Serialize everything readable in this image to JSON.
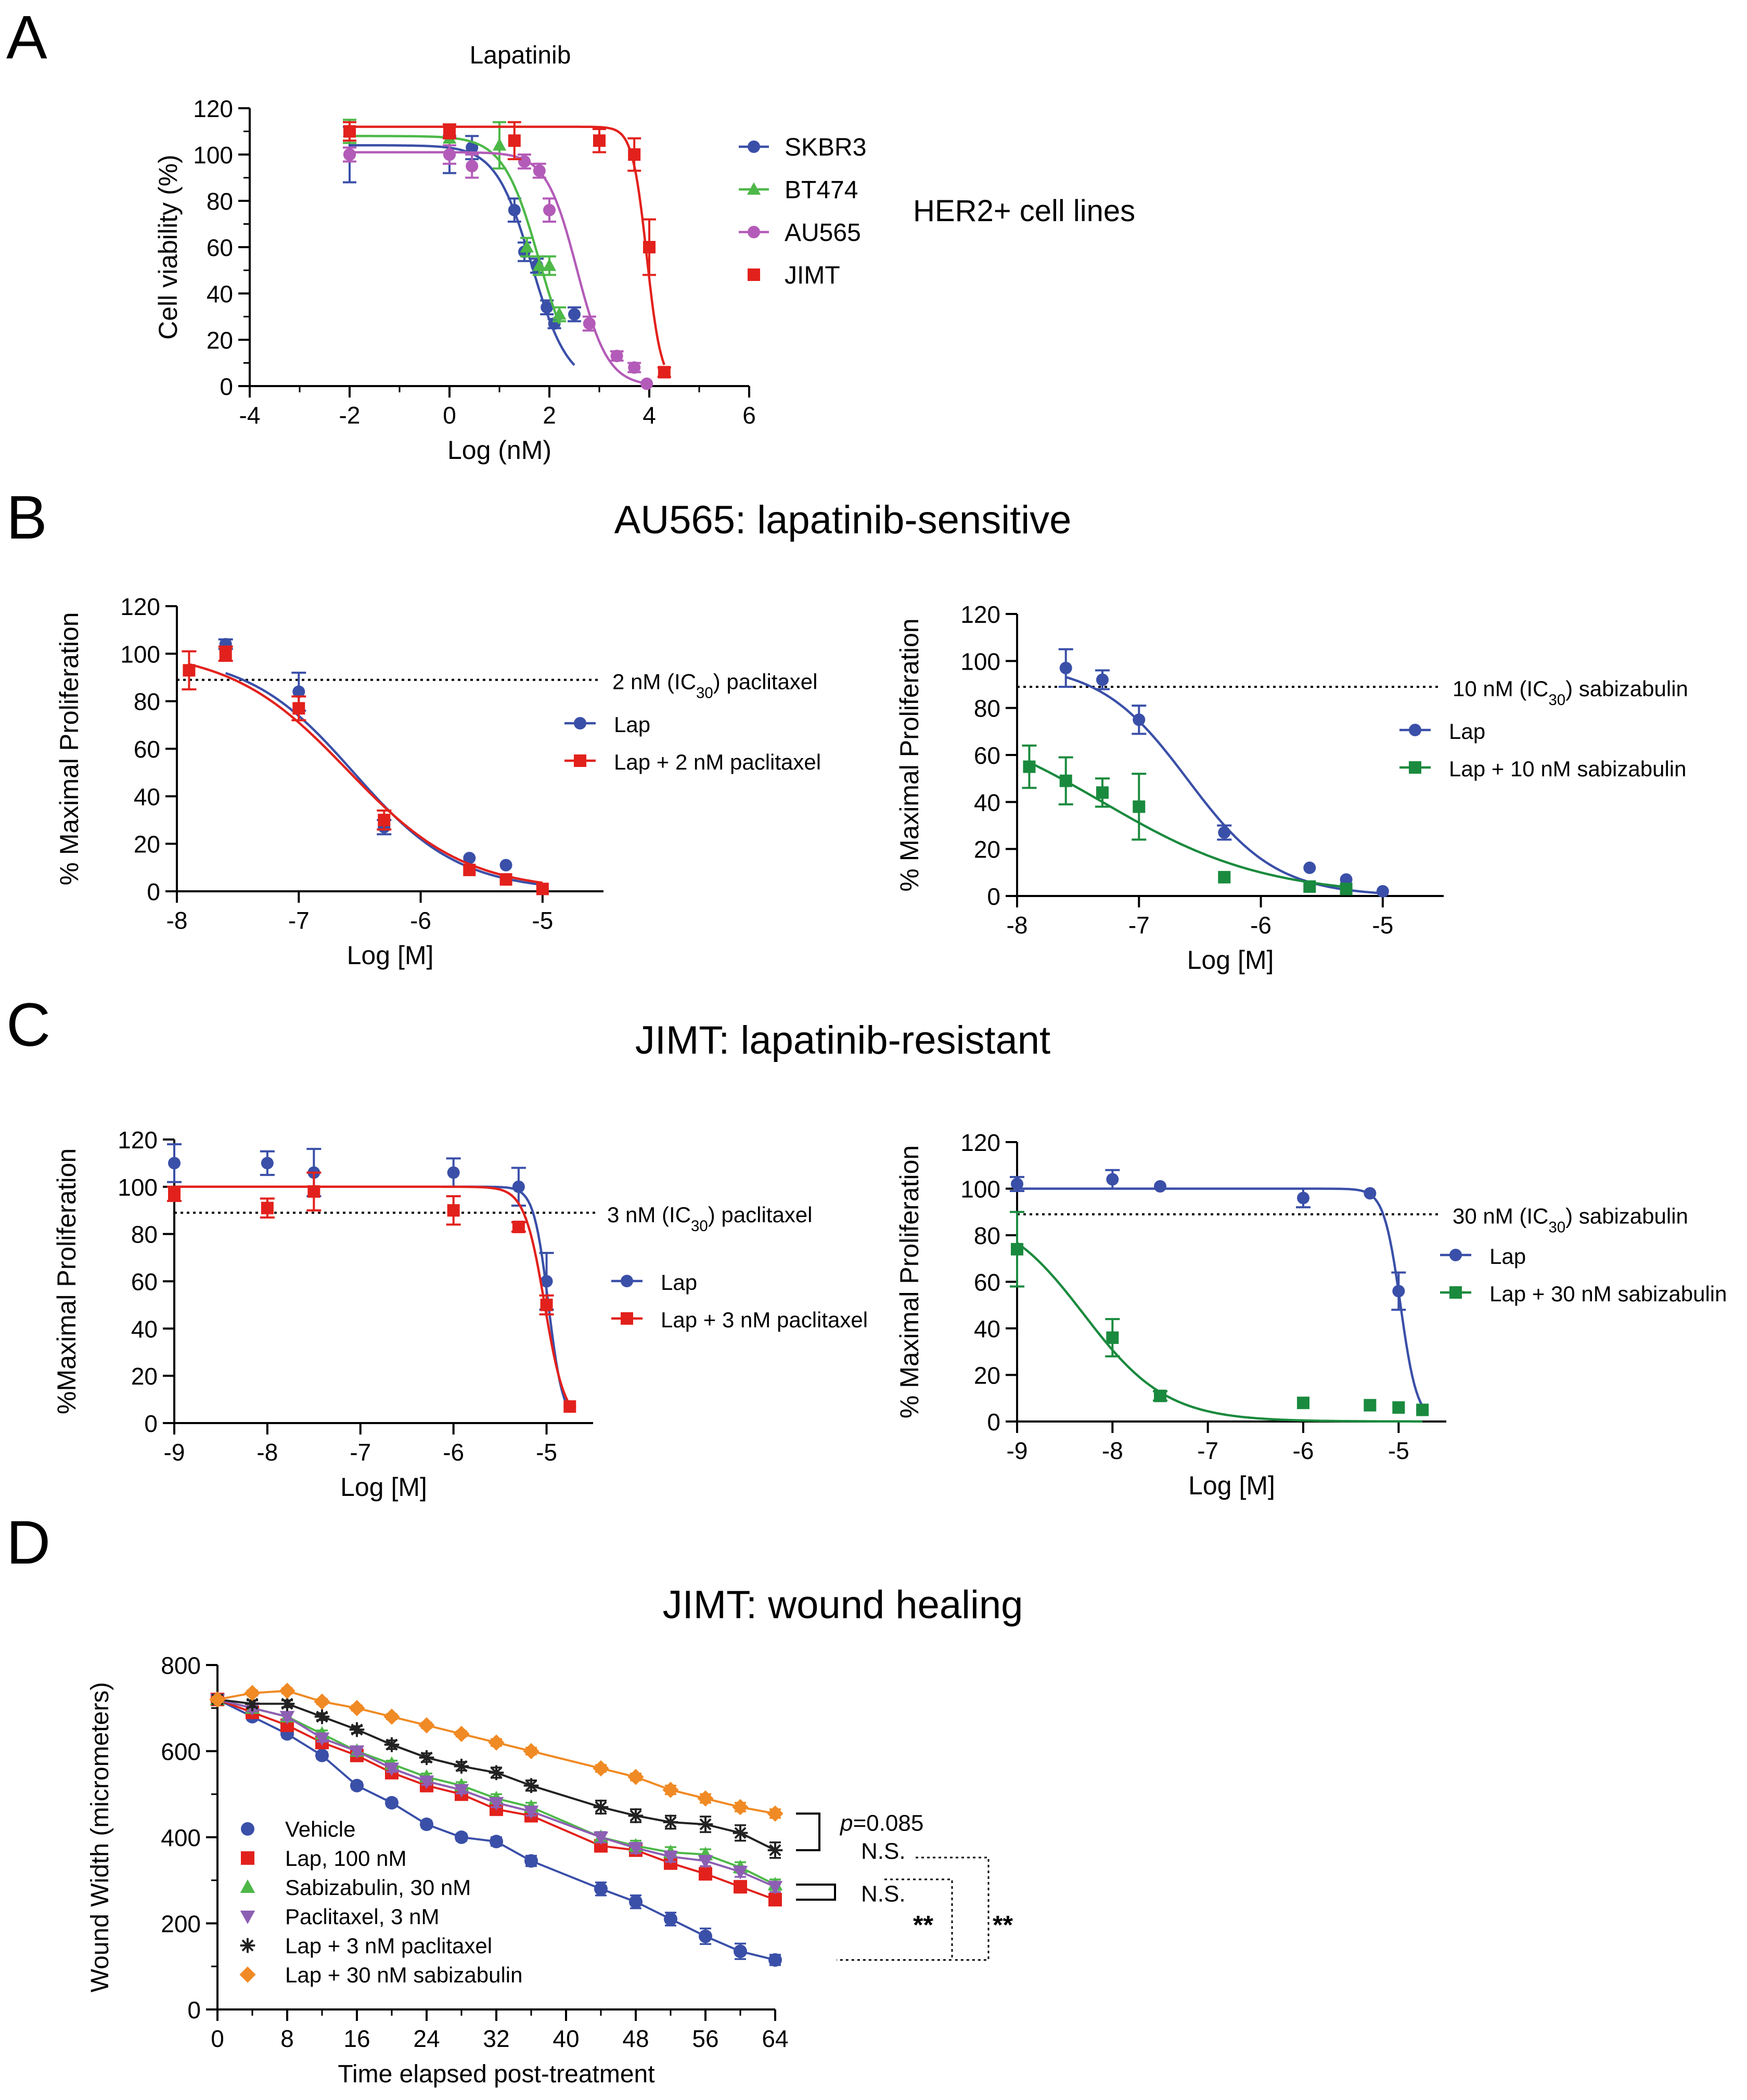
{
  "chart_data": [
    {
      "panel": "A",
      "type": "scatter",
      "title": "Lapatinib",
      "xlabel": "Log (nM)",
      "ylabel": "Cell viability (%)",
      "xlim": [
        -4,
        6
      ],
      "ylim": [
        0,
        120
      ],
      "xticks": [
        "-4",
        "-2",
        "0",
        "2",
        "4",
        "6"
      ],
      "yticks": [
        "0",
        "20",
        "40",
        "60",
        "80",
        "100",
        "120"
      ],
      "annotation": "HER2+ cell lines",
      "series": [
        {
          "name": "SKBR3",
          "color": "#3a4fa8",
          "marker": "circle",
          "x": [
            -2,
            0,
            0.45,
            1.3,
            1.5,
            1.75,
            1.95,
            2.1,
            2.5
          ],
          "y": [
            100,
            100,
            103,
            76,
            58,
            52,
            34,
            27,
            31
          ],
          "err": [
            12,
            8,
            5,
            5,
            4,
            3,
            3,
            2,
            3
          ],
          "fit": {
            "top": 104,
            "bottom": 0,
            "logic50": 1.65,
            "hill": 1.2
          }
        },
        {
          "name": "BT474",
          "color": "#4db848",
          "marker": "triangle",
          "x": [
            -2,
            0,
            1.0,
            1.55,
            1.8,
            2.0,
            2.2
          ],
          "y": [
            110,
            107,
            104,
            60,
            52,
            52,
            31
          ],
          "err": [
            5,
            6,
            10,
            4,
            4,
            4,
            3
          ],
          "fit": {
            "top": 108,
            "bottom": 0,
            "logic50": 1.8,
            "hill": 1.2
          }
        },
        {
          "name": "AU565",
          "color": "#b35bb8",
          "marker": "circle",
          "x": [
            -2,
            0,
            0.45,
            1.5,
            1.8,
            2.0,
            2.8,
            3.35,
            3.7,
            3.95
          ],
          "y": [
            100,
            100,
            95,
            97,
            93,
            76,
            27,
            13,
            8,
            1
          ],
          "err": [
            3,
            4,
            5,
            3,
            3,
            5,
            3,
            2,
            2,
            1
          ],
          "fit": {
            "top": 101,
            "bottom": 0,
            "logic50": 2.55,
            "hill": 1.4
          }
        },
        {
          "name": "JIMT",
          "color": "#e2211c",
          "marker": "square",
          "x": [
            -2,
            0,
            1.3,
            3.0,
            3.7,
            4.0,
            4.3
          ],
          "y": [
            110,
            110,
            106,
            106,
            100,
            60,
            6
          ],
          "err": [
            4,
            3,
            8,
            5,
            7,
            12,
            2
          ],
          "fit": {
            "top": 112,
            "bottom": 0,
            "logic50": 3.95,
            "hill": 3.0
          }
        }
      ]
    },
    {
      "panel": "B-left",
      "type": "scatter",
      "section_title": "AU565: lapatinib-sensitive",
      "xlabel": "Log [M]",
      "ylabel": "% Maximal Proliferation",
      "xlim": [
        -8,
        -4.5
      ],
      "ylim": [
        0,
        120
      ],
      "xticks": [
        "-8",
        "-7",
        "-6",
        "-5"
      ],
      "xtick_values": [
        -8,
        -7,
        -6,
        -5
      ],
      "yticks": [
        "0",
        "20",
        "40",
        "60",
        "80",
        "100",
        "120"
      ],
      "reference_line": {
        "y": 89,
        "label_pre": "2 nM (IC",
        "label_sub": "30",
        "label_post": ") paclitaxel"
      },
      "series": [
        {
          "name": "Lap",
          "color": "#3a4fa8",
          "marker": "circle",
          "x": [
            -7.6,
            -7.0,
            -6.3,
            -5.6,
            -5.3,
            -5.0
          ],
          "y": [
            104,
            84,
            27,
            14,
            11,
            1
          ],
          "err": [
            2,
            8,
            3,
            1,
            1,
            1
          ],
          "fit": {
            "top": 100,
            "bottom": 0,
            "logic50": -6.55,
            "hill": 1.0
          }
        },
        {
          "name": "Lap + 2 nM paclitaxel",
          "color": "#e2211c",
          "marker": "square",
          "x": [
            -7.9,
            -7.6,
            -7.0,
            -6.3,
            -5.6,
            -5.3,
            -5.0
          ],
          "y": [
            93,
            100,
            77,
            30,
            9,
            5,
            1
          ],
          "err": [
            8,
            3,
            5,
            4,
            1,
            1,
            1
          ],
          "fit": {
            "top": 102,
            "bottom": 0,
            "logic50": -6.6,
            "hill": 0.9
          }
        }
      ]
    },
    {
      "panel": "B-right",
      "type": "scatter",
      "xlabel": "Log [M]",
      "ylabel": "% Maximal Proliferation",
      "xlim": [
        -8,
        -4.5
      ],
      "ylim": [
        0,
        120
      ],
      "xticks": [
        "-8",
        "-7",
        "-6",
        "-5"
      ],
      "xtick_values": [
        -8,
        -7,
        -6,
        -5
      ],
      "yticks": [
        "0",
        "20",
        "40",
        "60",
        "80",
        "100",
        "120"
      ],
      "reference_line": {
        "y": 89,
        "label_pre": "10 nM (IC",
        "label_sub": "30",
        "label_post": ") sabizabulin"
      },
      "series": [
        {
          "name": "Lap",
          "color": "#3a4fa8",
          "marker": "circle",
          "x": [
            -7.6,
            -7.3,
            -7.0,
            -6.3,
            -5.6,
            -5.3,
            -5.0
          ],
          "y": [
            97,
            92,
            75,
            27,
            12,
            7,
            2
          ],
          "err": [
            8,
            4,
            6,
            3,
            1,
            1,
            1
          ],
          "fit": {
            "top": 99,
            "bottom": 0,
            "logic50": -6.6,
            "hill": 1.2
          }
        },
        {
          "name": "Lap + 10 nM sabizabulin",
          "color": "#1a8a3e",
          "marker": "square",
          "x": [
            -7.9,
            -7.6,
            -7.3,
            -7.0,
            -6.3,
            -5.6,
            -5.3
          ],
          "y": [
            55,
            49,
            44,
            38,
            8,
            4,
            3
          ],
          "err": [
            9,
            10,
            6,
            14,
            1,
            1,
            1
          ],
          "fit": {
            "top": 80,
            "bottom": 0,
            "logic50": -7.3,
            "hill": 0.65
          }
        }
      ]
    },
    {
      "panel": "C-left",
      "type": "scatter",
      "section_title": "JIMT: lapatinib-resistant",
      "xlabel": "Log [M]",
      "ylabel": "%Maximal Proliferation",
      "xlim": [
        -9,
        -4.5
      ],
      "ylim": [
        0,
        120
      ],
      "xticks": [
        "-9",
        "-8",
        "-7",
        "-6",
        "-5"
      ],
      "xtick_values": [
        -9,
        -8,
        -7,
        -6,
        -5
      ],
      "yticks": [
        "0",
        "20",
        "40",
        "60",
        "80",
        "100",
        "120"
      ],
      "reference_line": {
        "y": 89,
        "label_pre": "3 nM (IC",
        "label_sub": "30",
        "label_post": ") paclitaxel"
      },
      "series": [
        {
          "name": "Lap",
          "color": "#3a4fa8",
          "marker": "circle",
          "x": [
            -9.0,
            -8.0,
            -7.5,
            -6.0,
            -5.3,
            -5.0,
            -4.75
          ],
          "y": [
            110,
            110,
            106,
            106,
            100,
            60,
            7
          ],
          "err": [
            8,
            5,
            10,
            6,
            8,
            12,
            1
          ],
          "fit": {
            "top": 100,
            "bottom": 0,
            "logic50": -4.98,
            "hill": 5.5
          }
        },
        {
          "name": "Lap + 3 nM paclitaxel",
          "color": "#e2211c",
          "marker": "square",
          "x": [
            -9.0,
            -8.0,
            -7.5,
            -6.0,
            -5.3,
            -5.0,
            -4.75
          ],
          "y": [
            97,
            91,
            98,
            90,
            83,
            50,
            7
          ],
          "err": [
            3,
            4,
            8,
            6,
            2,
            4,
            1
          ],
          "fit": {
            "top": 100,
            "bottom": 0,
            "logic50": -5.02,
            "hill": 4.0
          }
        }
      ]
    },
    {
      "panel": "C-right",
      "type": "scatter",
      "xlabel": "Log [M]",
      "ylabel": "% Maximal Proliferation",
      "xlim": [
        -9,
        -4.5
      ],
      "ylim": [
        0,
        120
      ],
      "xticks": [
        "-9",
        "-8",
        "-7",
        "-6",
        "-5"
      ],
      "xtick_values": [
        -9,
        -8,
        -7,
        -6,
        -5
      ],
      "yticks": [
        "0",
        "20",
        "40",
        "60",
        "80",
        "100",
        "120"
      ],
      "reference_line": {
        "y": 89,
        "label_pre": "30 nM (IC",
        "label_sub": "30",
        "label_post": ") sabizabulin"
      },
      "series": [
        {
          "name": "Lap",
          "color": "#3a4fa8",
          "marker": "circle",
          "x": [
            -9.0,
            -8.0,
            -7.5,
            -6.0,
            -5.3,
            -5.0,
            -4.75
          ],
          "y": [
            102,
            104,
            101,
            96,
            98,
            56,
            5
          ],
          "err": [
            3,
            4,
            1,
            4,
            1,
            8,
            1
          ],
          "fit": {
            "top": 100,
            "bottom": 0,
            "logic50": -4.98,
            "hill": 5.0
          }
        },
        {
          "name": "Lap + 30 nM sabizabulin",
          "color": "#1a8a3e",
          "marker": "square",
          "x": [
            -9.0,
            -8.0,
            -7.5,
            -6.0,
            -5.3,
            -5.0,
            -4.75
          ],
          "y": [
            74,
            36,
            11,
            8,
            7,
            6,
            5
          ],
          "err": [
            16,
            8,
            2,
            1,
            1,
            1,
            1
          ],
          "fit": {
            "top": 92,
            "bottom": 0,
            "logic50": -8.3,
            "hill": 1.0
          }
        }
      ]
    },
    {
      "panel": "D",
      "type": "line",
      "section_title": "JIMT: wound healing",
      "xlabel": "Time elapsed post-treatment",
      "ylabel": "Wound Width (micrometers)",
      "xlim": [
        0,
        64
      ],
      "ylim": [
        0,
        800
      ],
      "xticks": [
        "0",
        "8",
        "16",
        "24",
        "32",
        "40",
        "48",
        "56",
        "64"
      ],
      "yticks": [
        "0",
        "200",
        "400",
        "600",
        "800"
      ],
      "x": [
        0,
        4,
        8,
        12,
        16,
        20,
        24,
        28,
        32,
        36,
        44,
        48,
        52,
        56,
        60,
        64
      ],
      "series": [
        {
          "name": "Vehicle",
          "color": "#3a4fa8",
          "marker": "circle",
          "values": [
            720,
            680,
            640,
            590,
            520,
            480,
            430,
            400,
            390,
            345,
            280,
            250,
            210,
            170,
            135,
            115
          ],
          "err": [
            8,
            8,
            8,
            8,
            8,
            8,
            8,
            8,
            10,
            12,
            15,
            15,
            15,
            18,
            18,
            12
          ]
        },
        {
          "name": "Lap, 100 nM",
          "color": "#e2211c",
          "marker": "square",
          "values": [
            720,
            690,
            660,
            620,
            590,
            550,
            520,
            500,
            465,
            450,
            380,
            370,
            340,
            315,
            285,
            255
          ],
          "err": [
            8,
            8,
            8,
            8,
            8,
            8,
            8,
            8,
            10,
            10,
            12,
            12,
            12,
            12,
            12,
            12
          ]
        },
        {
          "name": "Sabizabulin, 30 nM",
          "color": "#4db848",
          "marker": "triangle",
          "values": [
            720,
            700,
            680,
            640,
            600,
            570,
            540,
            520,
            490,
            470,
            400,
            380,
            365,
            360,
            330,
            290
          ],
          "err": [
            8,
            8,
            8,
            8,
            8,
            8,
            8,
            8,
            10,
            10,
            12,
            12,
            12,
            12,
            12,
            12
          ]
        },
        {
          "name": "Paclitaxel, 3 nM",
          "color": "#8d5fb3",
          "marker": "triangle-down",
          "values": [
            720,
            700,
            680,
            630,
            600,
            560,
            530,
            510,
            480,
            460,
            400,
            375,
            355,
            345,
            320,
            285
          ],
          "err": [
            8,
            8,
            8,
            8,
            8,
            8,
            8,
            8,
            10,
            10,
            12,
            12,
            12,
            12,
            12,
            12
          ]
        },
        {
          "name": "Lap + 3 nM paclitaxel",
          "color": "#222222",
          "marker": "asterisk",
          "values": [
            720,
            710,
            710,
            680,
            650,
            615,
            585,
            565,
            550,
            520,
            470,
            450,
            435,
            430,
            410,
            370
          ],
          "err": [
            8,
            8,
            8,
            8,
            8,
            10,
            10,
            10,
            12,
            12,
            15,
            15,
            15,
            18,
            18,
            18
          ]
        },
        {
          "name": "Lap + 30 nM sabizabulin",
          "color": "#f08a24",
          "marker": "diamond",
          "values": [
            720,
            735,
            740,
            715,
            700,
            680,
            660,
            640,
            620,
            600,
            560,
            540,
            510,
            490,
            470,
            455
          ],
          "err": [
            6,
            6,
            6,
            6,
            6,
            6,
            6,
            6,
            8,
            8,
            8,
            8,
            10,
            10,
            10,
            10
          ]
        }
      ],
      "annotations": {
        "p_prefix": "p",
        "p_value": "=0.085",
        "ns1": "N.S.",
        "ns2": "N.S.",
        "sig1": "**",
        "sig2": "**"
      }
    }
  ],
  "panel_letters": [
    "A",
    "B",
    "C",
    "D"
  ]
}
